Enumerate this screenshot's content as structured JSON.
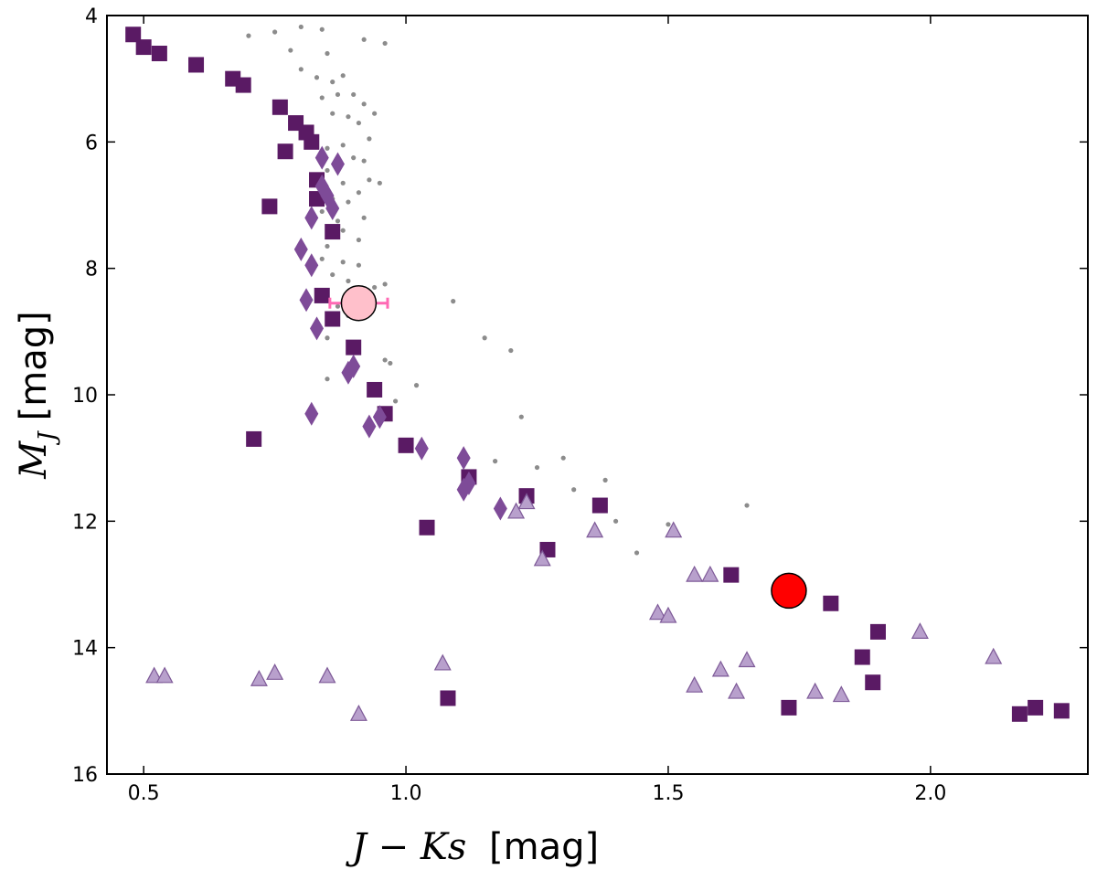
{
  "chart_data": {
    "type": "scatter",
    "title": "",
    "xlabel": {
      "math": "J − Ks",
      "unit": "[mag]"
    },
    "ylabel": {
      "math": "M",
      "sub": "J",
      "unit": "[mag]"
    },
    "xlim": [
      0.43,
      2.3
    ],
    "ylim": [
      16,
      4
    ],
    "y_inverted": true,
    "xticks": [
      0.5,
      1.0,
      1.5,
      2.0
    ],
    "xtick_labels": [
      "0.5",
      "1.0",
      "1.5",
      "2.0"
    ],
    "yticks": [
      4,
      6,
      8,
      10,
      12,
      14,
      16
    ],
    "ytick_labels": [
      "4",
      "6",
      "8",
      "10",
      "12",
      "14",
      "16"
    ],
    "grid": false,
    "colors": {
      "squares": "#5a1a64",
      "diamonds": "#7e4b98",
      "triangles": "#b8a0cc",
      "triangle_edge": "#7e5a98",
      "background": "#8c8c8c",
      "pink_point": "#ffc0cb",
      "pink_errorbar": "#ff69b4",
      "red_point": "#ff0000"
    },
    "series": [
      {
        "name": "background-stars",
        "marker": "dot",
        "points": [
          [
            0.7,
            4.32
          ],
          [
            0.75,
            4.26
          ],
          [
            0.8,
            4.18
          ],
          [
            0.84,
            4.22
          ],
          [
            0.92,
            4.38
          ],
          [
            0.96,
            4.44
          ],
          [
            0.78,
            4.55
          ],
          [
            0.85,
            4.6
          ],
          [
            0.8,
            4.85
          ],
          [
            0.83,
            4.98
          ],
          [
            0.86,
            5.05
          ],
          [
            0.88,
            4.95
          ],
          [
            0.84,
            5.3
          ],
          [
            0.87,
            5.25
          ],
          [
            0.9,
            5.25
          ],
          [
            0.92,
            5.4
          ],
          [
            0.86,
            5.55
          ],
          [
            0.89,
            5.6
          ],
          [
            0.91,
            5.7
          ],
          [
            0.94,
            5.55
          ],
          [
            0.93,
            5.95
          ],
          [
            0.88,
            6.05
          ],
          [
            0.85,
            6.1
          ],
          [
            0.9,
            6.25
          ],
          [
            0.92,
            6.3
          ],
          [
            0.85,
            6.45
          ],
          [
            0.88,
            6.65
          ],
          [
            0.91,
            6.8
          ],
          [
            0.93,
            6.6
          ],
          [
            0.95,
            6.65
          ],
          [
            0.86,
            6.9
          ],
          [
            0.89,
            6.95
          ],
          [
            0.84,
            7.1
          ],
          [
            0.87,
            7.25
          ],
          [
            0.92,
            7.2
          ],
          [
            0.88,
            7.4
          ],
          [
            0.91,
            7.55
          ],
          [
            0.85,
            7.65
          ],
          [
            0.84,
            7.85
          ],
          [
            0.88,
            7.9
          ],
          [
            0.91,
            7.95
          ],
          [
            0.86,
            8.1
          ],
          [
            0.89,
            8.2
          ],
          [
            0.94,
            8.3
          ],
          [
            0.96,
            8.25
          ],
          [
            0.92,
            8.45
          ],
          [
            0.87,
            8.6
          ],
          [
            0.89,
            8.75
          ],
          [
            0.85,
            9.1
          ],
          [
            0.96,
            9.45
          ],
          [
            0.97,
            9.5
          ],
          [
            0.85,
            9.75
          ],
          [
            0.98,
            10.1
          ],
          [
            1.02,
            9.85
          ],
          [
            1.09,
            8.52
          ],
          [
            1.15,
            9.1
          ],
          [
            1.2,
            9.3
          ],
          [
            1.11,
            10.9
          ],
          [
            1.17,
            11.05
          ],
          [
            1.22,
            10.35
          ],
          [
            1.25,
            11.15
          ],
          [
            1.3,
            11.0
          ],
          [
            1.32,
            11.5
          ],
          [
            1.38,
            11.35
          ],
          [
            1.4,
            12.0
          ],
          [
            1.44,
            12.5
          ],
          [
            1.5,
            12.05
          ],
          [
            1.65,
            11.75
          ]
        ]
      },
      {
        "name": "squares",
        "marker": "square",
        "points": [
          [
            0.48,
            4.3
          ],
          [
            0.5,
            4.5
          ],
          [
            0.53,
            4.6
          ],
          [
            0.6,
            4.78
          ],
          [
            0.67,
            5.0
          ],
          [
            0.69,
            5.1
          ],
          [
            0.76,
            5.45
          ],
          [
            0.79,
            5.7
          ],
          [
            0.81,
            5.85
          ],
          [
            0.82,
            6.0
          ],
          [
            0.77,
            6.15
          ],
          [
            0.83,
            6.6
          ],
          [
            0.83,
            6.9
          ],
          [
            0.74,
            7.02
          ],
          [
            0.86,
            7.42
          ],
          [
            0.84,
            8.43
          ],
          [
            0.86,
            8.8
          ],
          [
            0.9,
            9.25
          ],
          [
            0.94,
            9.92
          ],
          [
            0.96,
            10.3
          ],
          [
            0.71,
            10.7
          ],
          [
            1.0,
            10.8
          ],
          [
            1.12,
            11.3
          ],
          [
            1.23,
            11.6
          ],
          [
            1.37,
            11.75
          ],
          [
            1.04,
            12.1
          ],
          [
            1.27,
            12.45
          ],
          [
            1.62,
            12.85
          ],
          [
            1.81,
            13.3
          ],
          [
            1.9,
            13.75
          ],
          [
            1.87,
            14.15
          ],
          [
            1.89,
            14.55
          ],
          [
            1.08,
            14.8
          ],
          [
            1.73,
            14.95
          ],
          [
            2.17,
            15.05
          ],
          [
            2.2,
            14.95
          ],
          [
            2.25,
            15.0
          ]
        ]
      },
      {
        "name": "diamonds",
        "marker": "diamond",
        "points": [
          [
            0.84,
            6.25
          ],
          [
            0.87,
            6.35
          ],
          [
            0.84,
            6.7
          ],
          [
            0.85,
            6.85
          ],
          [
            0.86,
            7.05
          ],
          [
            0.82,
            7.2
          ],
          [
            0.8,
            7.7
          ],
          [
            0.82,
            7.95
          ],
          [
            0.81,
            8.5
          ],
          [
            0.83,
            8.95
          ],
          [
            0.9,
            9.55
          ],
          [
            0.89,
            9.65
          ],
          [
            0.82,
            10.3
          ],
          [
            0.95,
            10.35
          ],
          [
            0.93,
            10.5
          ],
          [
            1.03,
            10.85
          ],
          [
            1.11,
            11.0
          ],
          [
            1.12,
            11.4
          ],
          [
            1.11,
            11.5
          ],
          [
            1.18,
            11.8
          ]
        ]
      },
      {
        "name": "triangles",
        "marker": "triangle",
        "points": [
          [
            1.21,
            11.85
          ],
          [
            1.23,
            11.7
          ],
          [
            1.36,
            12.15
          ],
          [
            1.51,
            12.15
          ],
          [
            1.26,
            12.6
          ],
          [
            1.55,
            12.85
          ],
          [
            1.58,
            12.85
          ],
          [
            1.48,
            13.45
          ],
          [
            1.5,
            13.5
          ],
          [
            1.98,
            13.75
          ],
          [
            2.12,
            14.15
          ],
          [
            1.65,
            14.2
          ],
          [
            1.6,
            14.35
          ],
          [
            1.55,
            14.6
          ],
          [
            1.63,
            14.7
          ],
          [
            1.78,
            14.7
          ],
          [
            1.83,
            14.75
          ],
          [
            1.07,
            14.25
          ],
          [
            0.52,
            14.45
          ],
          [
            0.54,
            14.45
          ],
          [
            0.72,
            14.5
          ],
          [
            0.75,
            14.4
          ],
          [
            0.85,
            14.45
          ],
          [
            0.91,
            15.05
          ]
        ]
      }
    ],
    "highlighted": [
      {
        "name": "pink-target",
        "x": 0.91,
        "y": 8.55,
        "xerr": 0.055,
        "marker": "circle"
      },
      {
        "name": "red-target",
        "x": 1.73,
        "y": 13.1,
        "marker": "circle"
      }
    ]
  }
}
